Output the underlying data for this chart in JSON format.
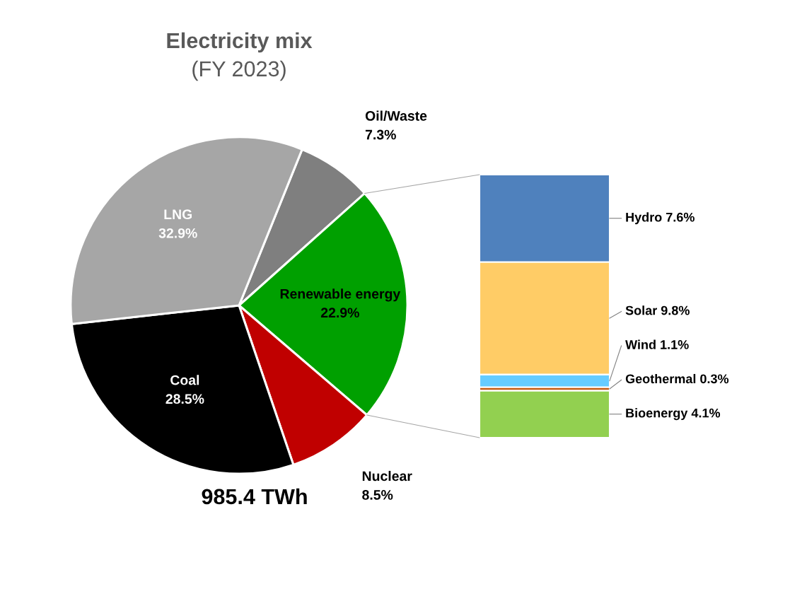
{
  "chart_data": [
    {
      "type": "pie",
      "title": "Electricity mix",
      "subtitle": "(FY 2023)",
      "categories": [
        "Oil/Waste",
        "Renewable energy",
        "Nuclear",
        "Coal",
        "LNG"
      ],
      "values": [
        7.3,
        22.9,
        8.5,
        28.5,
        32.9
      ],
      "value_labels": [
        "7.3%",
        "22.9%",
        "8.5%",
        "28.5%",
        "32.9%"
      ],
      "colors": [
        "#7f7f7f",
        "#00a000",
        "#c00000",
        "#000000",
        "#a6a6a6"
      ],
      "annotations": [
        "985.4 TWh"
      ]
    },
    {
      "type": "bar",
      "stacked": true,
      "categories": [
        null
      ],
      "series": [
        {
          "color": "#92d050",
          "values": [
            4.1
          ],
          "value_labels": [
            "Bioenergy 4.1%"
          ]
        },
        {
          "color": "#c55a11",
          "values": [
            0.3
          ],
          "value_labels": [
            "Geothermal 0.3%"
          ]
        },
        {
          "color": "#66ccff",
          "values": [
            1.1
          ],
          "value_labels": [
            "Wind 1.1%"
          ]
        },
        {
          "color": "#ffcc66",
          "values": [
            9.8
          ],
          "value_labels": [
            "Solar 9.8%"
          ]
        },
        {
          "color": "#4f81bd",
          "values": [
            7.6
          ],
          "value_labels": [
            "Hydro 7.6%"
          ]
        }
      ]
    }
  ]
}
